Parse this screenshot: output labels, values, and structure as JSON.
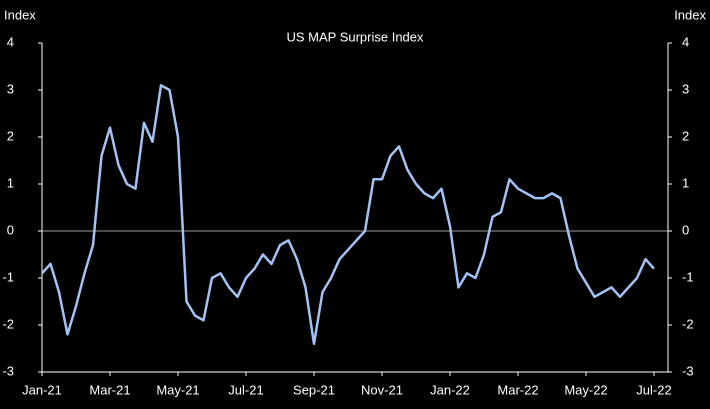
{
  "chart_data": {
    "type": "line",
    "title": "US MAP Surprise Index",
    "ylabel": "Index",
    "y2label": "Index",
    "categories": [
      "Jan-21",
      null,
      null,
      null,
      null,
      null,
      null,
      null,
      "Mar-21",
      null,
      null,
      null,
      null,
      null,
      null,
      null,
      "May-21",
      null,
      null,
      null,
      null,
      null,
      null,
      null,
      "Jul-21",
      null,
      null,
      null,
      null,
      null,
      null,
      null,
      "Sep-21",
      null,
      null,
      null,
      null,
      null,
      null,
      null,
      "Nov-21",
      null,
      null,
      null,
      null,
      null,
      null,
      null,
      "Jan-22",
      null,
      null,
      null,
      null,
      null,
      null,
      null,
      "Mar-22",
      null,
      null,
      null,
      null,
      null,
      null,
      null,
      "May-22",
      null,
      null,
      null,
      null,
      null,
      null,
      null,
      "Jul-22"
    ],
    "series": [
      {
        "name": "US MAP Surprise Index",
        "color": "#a4c2f4",
        "values": [
          -0.9,
          -0.7,
          -1.3,
          -2.2,
          -1.6,
          -0.9,
          -0.3,
          1.6,
          2.2,
          1.4,
          1.0,
          0.9,
          2.3,
          1.9,
          3.1,
          3.0,
          2.0,
          -1.5,
          -1.8,
          -1.9,
          -1.0,
          -0.9,
          -1.2,
          -1.4,
          -1.0,
          -0.8,
          -0.5,
          -0.7,
          -0.3,
          -0.2,
          -0.6,
          -1.2,
          -2.4,
          -1.3,
          -1.0,
          -0.6,
          -0.4,
          -0.2,
          0.0,
          1.1,
          1.1,
          1.6,
          1.8,
          1.3,
          1.0,
          0.8,
          0.7,
          0.9,
          0.1,
          -1.2,
          -0.9,
          -1.0,
          -0.5,
          0.3,
          0.4,
          1.1,
          0.9,
          0.8,
          0.7,
          0.7,
          0.8,
          0.7,
          -0.1,
          -0.8,
          -1.1,
          -1.4,
          -1.3,
          -1.2,
          -1.4,
          -1.2,
          -1.0,
          -0.6,
          -0.8
        ]
      }
    ],
    "ylim": [
      -3,
      4
    ],
    "yticks": [
      -3,
      -2,
      -1,
      0,
      1,
      2,
      3,
      4
    ],
    "y2lim": [
      -3,
      4
    ],
    "y2ticks": [
      -3,
      -2,
      -1,
      0,
      1,
      2,
      3,
      4
    ]
  }
}
